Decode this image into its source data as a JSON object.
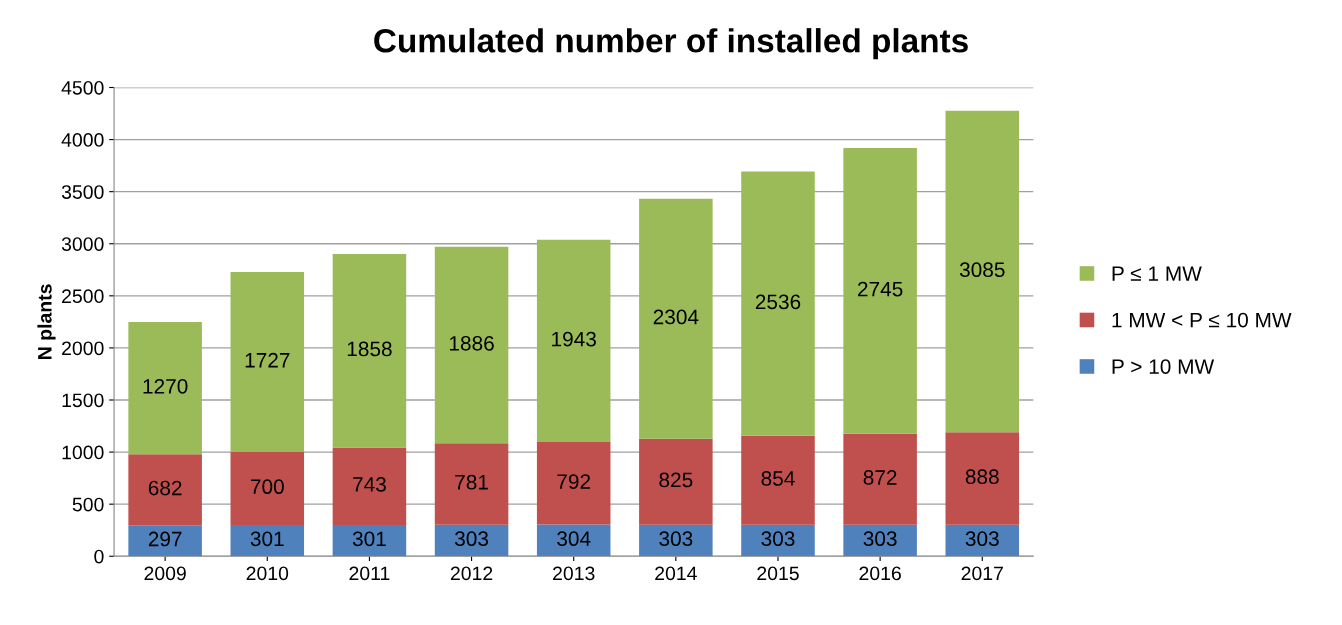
{
  "chart_data": {
    "type": "bar",
    "title": "Cumulated number of installed plants",
    "ylabel": "N plants",
    "categories": [
      "2009",
      "2010",
      "2011",
      "2012",
      "2013",
      "2014",
      "2015",
      "2016",
      "2017"
    ],
    "stacked": true,
    "series": [
      {
        "name": "P > 10 MW",
        "color": "#4f81bd",
        "values": [
          297,
          301,
          301,
          303,
          304,
          303,
          303,
          303,
          303
        ]
      },
      {
        "name": "1 MW < P ≤ 10 MW",
        "color": "#c0504d",
        "values": [
          682,
          700,
          743,
          781,
          792,
          825,
          854,
          872,
          888
        ]
      },
      {
        "name": "P ≤ 1 MW",
        "color": "#9bbb59",
        "values": [
          1270,
          1727,
          1858,
          1886,
          1943,
          2304,
          2536,
          2745,
          3085
        ]
      }
    ],
    "ylim": [
      0,
      4500
    ],
    "yticks": [
      0,
      500,
      1000,
      1500,
      2000,
      2500,
      3000,
      3500,
      4000,
      4500
    ],
    "grid": "y",
    "legend": "right",
    "data_labels": true
  }
}
